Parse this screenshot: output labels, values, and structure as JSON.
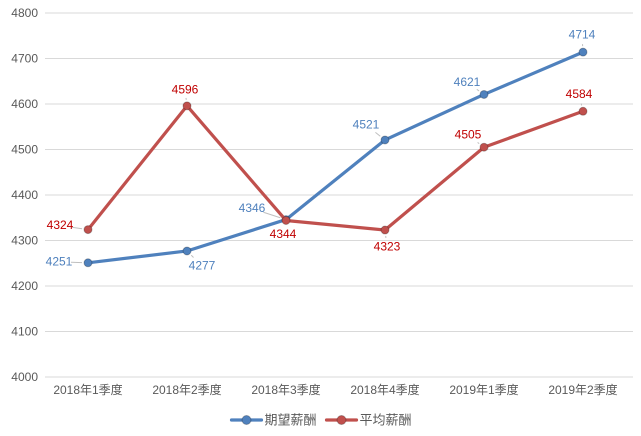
{
  "chart_data": {
    "type": "line",
    "title": "",
    "xlabel": "",
    "ylabel": "",
    "categories": [
      "2018年1季度",
      "2018年2季度",
      "2018年3季度",
      "2018年4季度",
      "2019年1季度",
      "2019年2季度"
    ],
    "series": [
      {
        "name": "期望薪酬",
        "color": "#4F81BD",
        "label_color": "#4F81BD",
        "values": [
          4251,
          4277,
          4346,
          4521,
          4621,
          4714
        ],
        "label_offsets": [
          [
            -29,
            -1
          ],
          [
            15,
            15
          ],
          [
            -34,
            -11
          ],
          [
            -19,
            -15
          ],
          [
            -17,
            -12
          ],
          [
            -1,
            -17
          ]
        ]
      },
      {
        "name": "平均薪酬",
        "color": "#C0504D",
        "label_color": "#C00000",
        "values": [
          4324,
          4596,
          4344,
          4323,
          4505,
          4584
        ],
        "label_offsets": [
          [
            -28,
            -4
          ],
          [
            -2,
            -16
          ],
          [
            -3,
            14
          ],
          [
            2,
            17
          ],
          [
            -16,
            -12
          ],
          [
            -4,
            -17
          ]
        ]
      }
    ],
    "ylim": [
      4000,
      4800
    ],
    "ytick_step": 100,
    "yticks": [
      4000,
      4100,
      4200,
      4300,
      4400,
      4500,
      4600,
      4700,
      4800
    ],
    "grid": true,
    "legend_position": "bottom",
    "legend": [
      "期望薪酬",
      "平均薪酬"
    ]
  },
  "style_colors": {
    "background": "#FFFFFF",
    "gridline": "#D9D9D9",
    "axis_text": "#595959",
    "legend_text": "#595959",
    "leader_line": "#BFBFBF",
    "series_blue": "#4F81BD",
    "series_red": "#C0504D",
    "label_blue": "#4F81BD",
    "label_red": "#C00000"
  }
}
